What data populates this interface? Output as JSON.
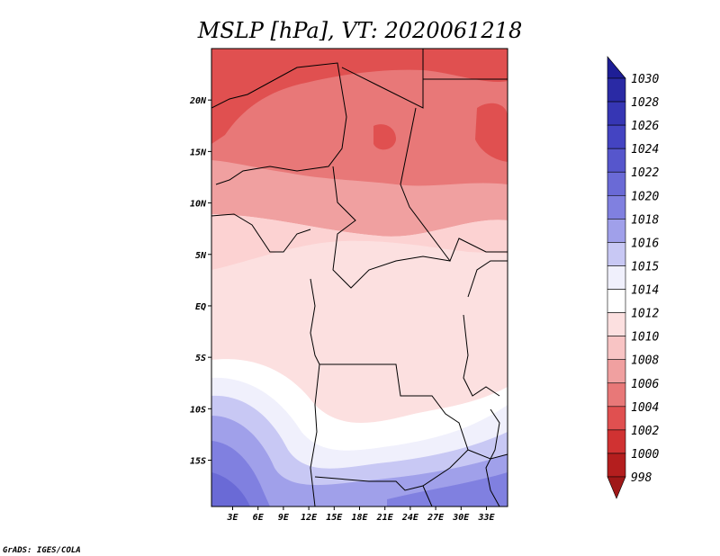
{
  "chart_data": {
    "type": "heatmap",
    "title": "MSLP [hPa], VT: 2020061218",
    "variable": "MSLP",
    "units": "hPa",
    "valid_time": "2020061218",
    "x_ticks": [
      "3E",
      "6E",
      "9E",
      "12E",
      "15E",
      "18E",
      "21E",
      "24E",
      "27E",
      "30E",
      "33E"
    ],
    "x_values": [
      3,
      6,
      9,
      12,
      15,
      18,
      21,
      24,
      27,
      30,
      33
    ],
    "y_ticks": [
      "20N",
      "15N",
      "10N",
      "5N",
      "EQ",
      "5S",
      "10S",
      "15S"
    ],
    "y_values": [
      20,
      15,
      10,
      5,
      0,
      -5,
      -10,
      -15
    ],
    "xlim": [
      0.5,
      35.5
    ],
    "ylim": [
      -19.5,
      25
    ],
    "colorbar": {
      "levels": [
        "1030",
        "1028",
        "1026",
        "1024",
        "1022",
        "1020",
        "1018",
        "1016",
        "1015",
        "1014",
        "1012",
        "1010",
        "1008",
        "1006",
        "1004",
        "1002",
        "1000",
        "998"
      ],
      "colors": [
        "#1e1e96",
        "#2a2aa5",
        "#3636b4",
        "#4444c2",
        "#5656cc",
        "#6a6ad6",
        "#8080e0",
        "#a0a0ea",
        "#c8c8f4",
        "#f0f0fc",
        "#ffffff",
        "#fce0e0",
        "#f8c4c4",
        "#f0a0a0",
        "#e87878",
        "#e05050",
        "#d03232",
        "#b41e1e",
        "#a01818"
      ]
    },
    "credit": "GrADS: IGES/COLA"
  }
}
